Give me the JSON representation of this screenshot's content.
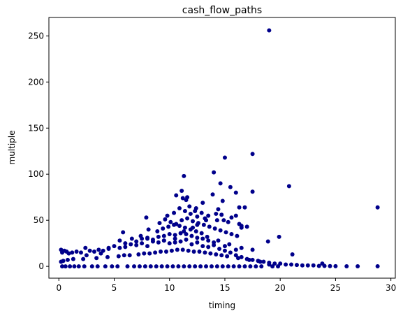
{
  "chart_data": {
    "type": "scatter",
    "title": "cash_flow_paths",
    "xlabel": "timing",
    "ylabel": "multiple",
    "xlim": [
      -0.9,
      30.4
    ],
    "ylim": [
      -12.8,
      270
    ],
    "xticks": [
      0,
      5,
      10,
      15,
      20,
      25,
      30
    ],
    "yticks": [
      0,
      50,
      100,
      150,
      200,
      250
    ],
    "grid": false,
    "legend": "none",
    "marker_color": "#00008b",
    "series": [
      {
        "x": [
          0.2,
          0.3,
          0.5,
          0.7,
          0.9,
          1.2,
          1.6,
          2.0,
          2.4,
          2.8,
          3.2,
          3.6,
          4.0,
          4.5,
          5.0,
          5.5,
          6.0,
          6.5,
          7.0,
          7.5,
          8.0,
          8.5,
          9.0,
          9.5,
          10.0,
          10.5,
          11.0,
          11.5,
          12.0,
          12.5,
          13.0,
          13.5,
          14.0,
          14.5,
          15.0,
          15.5,
          16.0,
          16.5,
          17.0,
          17.5,
          18.0,
          18.5,
          19.0,
          19.5,
          20.0,
          20.5,
          21.0,
          21.5,
          22.0,
          22.5,
          23.0,
          23.5,
          24.0,
          24.5,
          25.0,
          26.0,
          27.0,
          28.8,
          0.3,
          0.6,
          1.0,
          1.4,
          1.8,
          2.3,
          3.0,
          3.5,
          4.2,
          4.8,
          5.3,
          6.2,
          6.8,
          7.3,
          7.8,
          8.3,
          8.8,
          9.3,
          9.8,
          10.3,
          10.8,
          11.3,
          11.8,
          12.3,
          12.8,
          13.3,
          13.8,
          14.3,
          14.8,
          15.3,
          15.8,
          16.3,
          16.8,
          17.3,
          17.8,
          18.3,
          19.3,
          19.8,
          0.2,
          0.4,
          0.8,
          1.3,
          2.2,
          3.4,
          4.4,
          5.4,
          5.9,
          6.4,
          7.2,
          7.7,
          8.2,
          8.7,
          9.2,
          9.7,
          10.2,
          10.7,
          11.2,
          11.7,
          12.2,
          12.7,
          13.2,
          13.7,
          14.2,
          14.7,
          15.2,
          16.2,
          17.2,
          18.2,
          19.0,
          2.5,
          3.8,
          5.5,
          6.0,
          7.0,
          7.5,
          8.0,
          8.5,
          9.0,
          9.5,
          10.0,
          10.5,
          11.0,
          11.5,
          12.0,
          12.5,
          13.0,
          13.5,
          14.0,
          15.0,
          16.0,
          4.5,
          5.8,
          6.6,
          7.4,
          8.1,
          8.9,
          9.4,
          9.9,
          10.4,
          10.9,
          11.4,
          11.9,
          12.4,
          12.9,
          13.4,
          14.4,
          15.4,
          16.5,
          17.5,
          7.9,
          9.1,
          9.6,
          10.1,
          10.6,
          11.1,
          11.6,
          12.1,
          12.6,
          13.1,
          13.6,
          14.1,
          14.6,
          15.1,
          15.6,
          16.1,
          9.8,
          10.4,
          10.9,
          11.4,
          11.9,
          12.5,
          13.2,
          14.3,
          15.3,
          16.3,
          11.1,
          11.3,
          10.6,
          11.6,
          13.0,
          13.9,
          14.8,
          12.3,
          13.5,
          15.6,
          17.0,
          8.0,
          9.5,
          10.5,
          16.5,
          12.9,
          14.2,
          16.0,
          11.2,
          11.5,
          11.8,
          12.4,
          14.0,
          14.6,
          15.5,
          15.0,
          16.0,
          11.3,
          12.1,
          12.5,
          13.3,
          16.3,
          16.8,
          17.5,
          14.4,
          14.7,
          14.9,
          16.5,
          20.8,
          17.5,
          18.9,
          28.8,
          19.9,
          21.1,
          23.8,
          19.0
        ],
        "y": [
          18,
          15,
          17,
          16,
          14,
          15,
          16,
          15,
          20,
          17,
          16,
          18,
          17,
          19,
          22,
          20,
          21,
          24,
          23,
          25,
          22,
          27,
          26,
          28,
          25,
          30,
          27,
          29,
          24,
          26,
          22,
          21,
          23,
          19,
          17,
          15,
          12,
          10,
          8,
          7,
          6,
          5,
          4,
          3,
          3,
          2,
          2,
          1.5,
          1,
          1,
          1,
          0.5,
          0.5,
          0.3,
          0.2,
          0.1,
          0.1,
          0.1,
          0,
          0,
          0,
          0,
          0,
          0,
          0,
          0,
          0,
          0,
          0,
          0,
          0,
          0,
          0,
          0,
          0,
          0,
          0,
          0,
          0,
          0,
          0,
          0,
          0,
          0,
          0,
          0,
          0,
          0,
          0,
          0,
          0,
          0,
          0,
          0,
          0,
          0,
          5,
          6,
          7,
          8,
          8,
          9,
          10,
          11,
          12,
          12,
          13,
          14,
          14,
          15,
          16,
          16,
          17,
          18,
          18,
          17,
          16,
          16,
          15,
          14,
          13,
          12,
          11,
          9,
          7,
          5,
          2,
          12,
          14,
          28,
          25,
          27,
          30,
          31,
          29,
          32,
          33,
          35,
          34,
          36,
          35,
          33,
          31,
          30,
          28,
          26,
          22,
          18,
          20,
          37,
          30,
          33,
          40,
          38,
          41,
          43,
          45,
          44,
          42,
          40,
          38,
          36,
          32,
          28,
          24,
          20,
          18,
          53,
          47,
          51,
          48,
          46,
          50,
          52,
          49,
          47,
          45,
          43,
          41,
          39,
          37,
          35,
          33,
          55,
          58,
          63,
          60,
          57,
          54,
          52,
          50,
          48,
          46,
          82,
          98,
          77,
          75,
          69,
          78,
          71,
          60,
          55,
          53,
          43,
          30,
          28,
          26,
          42,
          58,
          57,
          55,
          74,
          72,
          65,
          63,
          102,
          90,
          86,
          118,
          80,
          38,
          42,
          45,
          50,
          64,
          64,
          81,
          62,
          56,
          50,
          44,
          87,
          122,
          27,
          64,
          32,
          13,
          3,
          256
        ]
      }
    ]
  }
}
